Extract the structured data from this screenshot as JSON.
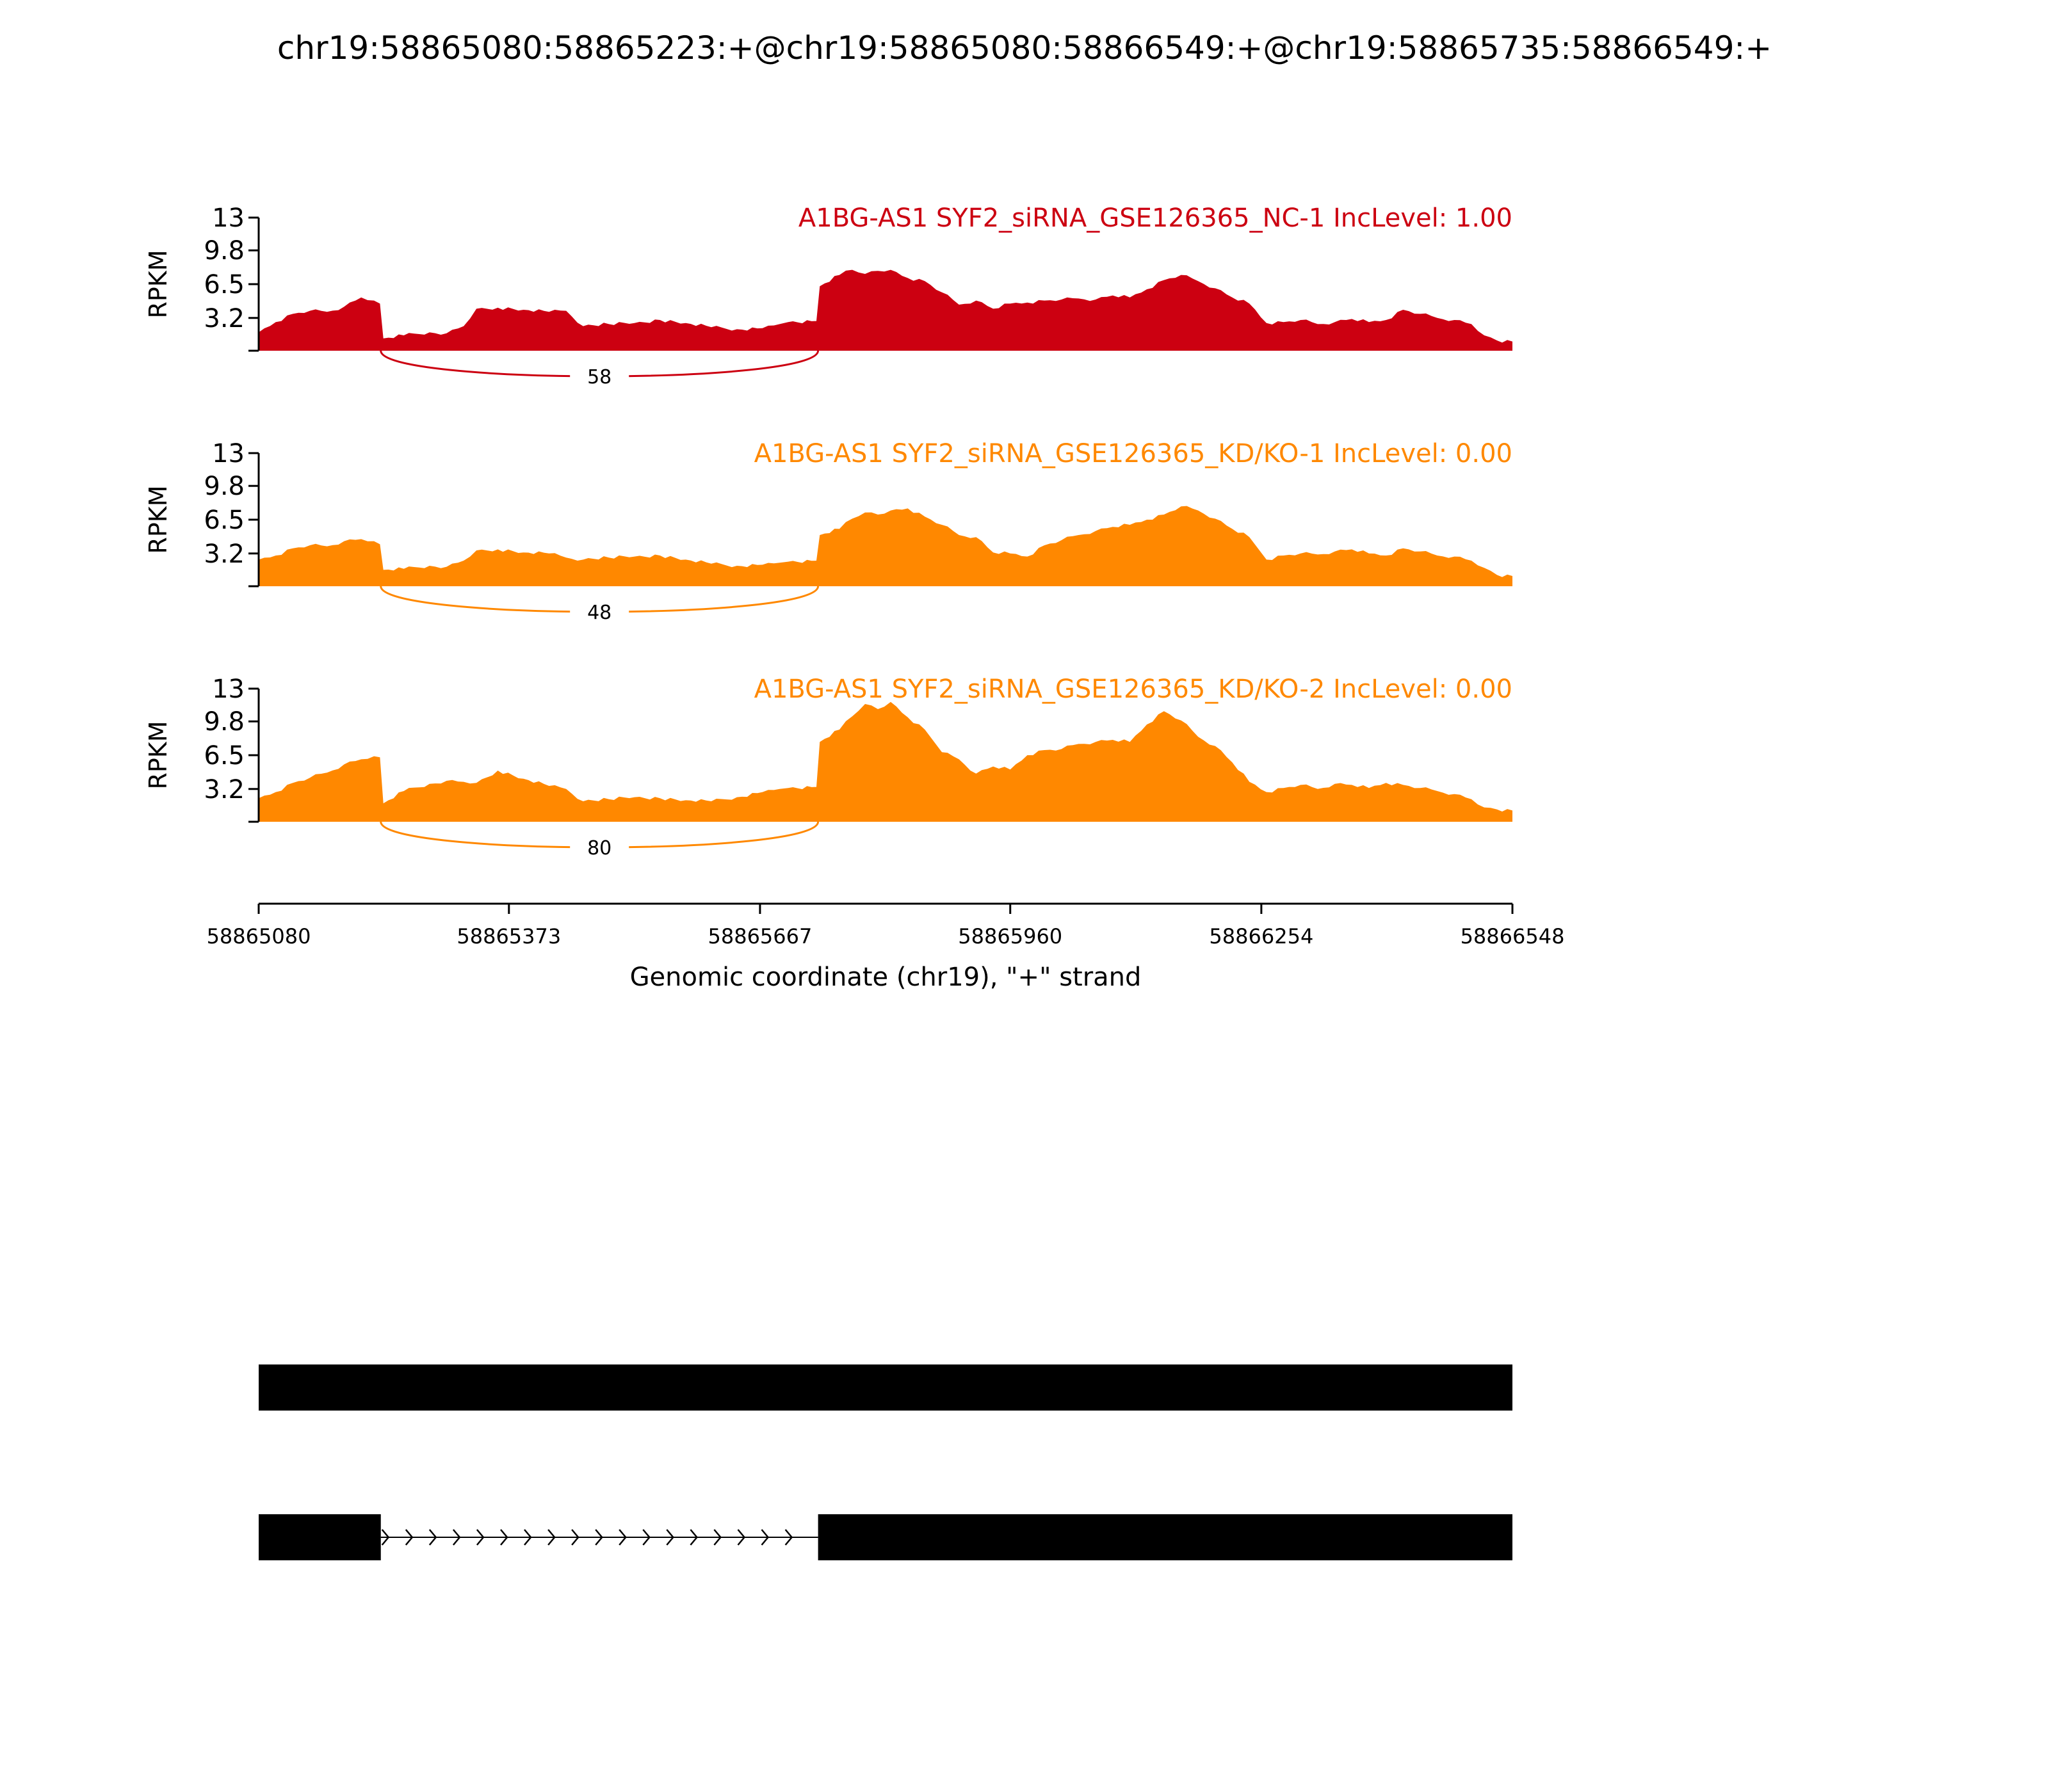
{
  "title": "chr19:58865080:58865223:+@chr19:58865080:58866549:+@chr19:58865735:58866549:+",
  "colors": {
    "nc": "#cc0011",
    "kd": "#ff8800",
    "axis": "#000000",
    "exon": "#000000"
  },
  "chart_data": {
    "type": "area",
    "xlabel": "Genomic coordinate (chr19), \"+\" strand",
    "ylabel": "RPKM",
    "xlim": [
      58865080,
      58866548
    ],
    "xticks": [
      58865080,
      58865373,
      58865667,
      58865960,
      58866254,
      58866548
    ],
    "xtick_labels": [
      "58865080",
      "58865373",
      "58865667",
      "58865960",
      "58866254",
      "58866548"
    ],
    "ylim": [
      0,
      13
    ],
    "yticks": [
      3.2,
      6.5,
      9.8,
      13
    ],
    "ytick_labels": [
      "3.2",
      "6.5",
      "9.8",
      "13"
    ],
    "grid": false,
    "series": [
      {
        "name": "A1BG-AS1 SYF2_siRNA_GSE126365_NC-1 IncLevel: 1.00",
        "color_key": "nc",
        "junction": {
          "start": 58865223,
          "end": 58865735,
          "count": "58"
        },
        "x": [
          58865080,
          58865100,
          58865120,
          58865140,
          58865160,
          58865180,
          58865200,
          58865215,
          58865222,
          58865226,
          58865250,
          58865280,
          58865300,
          58865320,
          58865335,
          58865360,
          58865390,
          58865420,
          58865440,
          58865460,
          58865490,
          58865520,
          58865550,
          58865580,
          58865610,
          58865640,
          58865670,
          58865690,
          58865700,
          58865733,
          58865737,
          58865760,
          58865775,
          58865790,
          58865805,
          58865820,
          58865840,
          58865860,
          58865880,
          58865900,
          58865920,
          58865940,
          58865960,
          58865980,
          58866000,
          58866020,
          58866040,
          58866060,
          58866080,
          58866100,
          58866120,
          58866140,
          58866160,
          58866180,
          58866200,
          58866220,
          58866240,
          58866260,
          58866280,
          58866300,
          58866320,
          58866340,
          58866360,
          58866380,
          58866400,
          58866420,
          58866440,
          58866460,
          58866480,
          58866500,
          58866515,
          58866530,
          58866548
        ],
        "y": [
          1.8,
          2.8,
          3.6,
          3.9,
          3.8,
          4.3,
          5.2,
          4.9,
          4.6,
          1.2,
          1.5,
          1.8,
          1.7,
          2.4,
          4.1,
          4.2,
          4.0,
          3.8,
          3.9,
          2.4,
          2.6,
          2.7,
          3.0,
          2.7,
          2.3,
          2.1,
          2.2,
          2.6,
          2.8,
          2.9,
          6.3,
          7.4,
          7.9,
          7.5,
          7.8,
          7.9,
          7.1,
          6.8,
          5.7,
          4.5,
          4.9,
          4.1,
          4.6,
          4.7,
          4.9,
          5.0,
          5.1,
          5.0,
          5.4,
          5.2,
          6.0,
          6.9,
          7.4,
          6.8,
          6.1,
          5.2,
          4.6,
          2.7,
          2.8,
          3.0,
          2.6,
          2.8,
          3.1,
          2.8,
          3.0,
          4.0,
          3.6,
          3.2,
          3.0,
          2.6,
          1.5,
          1.0,
          0.9
        ]
      },
      {
        "name": "A1BG-AS1 SYF2_siRNA_GSE126365_KD/KO-1 IncLevel: 0.00",
        "color_key": "kd",
        "junction": {
          "start": 58865223,
          "end": 58865735,
          "count": "48"
        },
        "x": [
          58865080,
          58865100,
          58865120,
          58865140,
          58865160,
          58865180,
          58865200,
          58865215,
          58865222,
          58865226,
          58865250,
          58865280,
          58865300,
          58865320,
          58865335,
          58865360,
          58865390,
          58865420,
          58865440,
          58865460,
          58865490,
          58865520,
          58865550,
          58865580,
          58865610,
          58865640,
          58865670,
          58865690,
          58865700,
          58865733,
          58865737,
          58865760,
          58865775,
          58865790,
          58865805,
          58865820,
          58865840,
          58865860,
          58865880,
          58865900,
          58865920,
          58865940,
          58865960,
          58865980,
          58866000,
          58866020,
          58866040,
          58866060,
          58866080,
          58866100,
          58866120,
          58866140,
          58866160,
          58866180,
          58866200,
          58866220,
          58866240,
          58866260,
          58866280,
          58866300,
          58866320,
          58866340,
          58866360,
          58866380,
          58866400,
          58866420,
          58866440,
          58866460,
          58866480,
          58866500,
          58866515,
          58866530,
          58866548
        ],
        "y": [
          2.6,
          3.0,
          3.7,
          4.0,
          3.9,
          4.4,
          4.6,
          4.4,
          4.1,
          1.6,
          1.7,
          2.0,
          1.9,
          2.5,
          3.5,
          3.6,
          3.3,
          3.2,
          2.8,
          2.6,
          2.8,
          2.9,
          3.0,
          2.6,
          2.2,
          2.0,
          2.1,
          2.3,
          2.4,
          2.5,
          5.0,
          5.6,
          6.6,
          7.2,
          7.0,
          7.4,
          7.6,
          6.8,
          6.0,
          5.0,
          4.8,
          3.3,
          3.2,
          2.9,
          4.0,
          4.5,
          5.0,
          5.4,
          5.8,
          6.0,
          6.5,
          7.0,
          7.8,
          7.4,
          6.6,
          5.6,
          4.8,
          2.6,
          3.0,
          3.2,
          3.1,
          3.4,
          3.6,
          3.2,
          3.0,
          3.7,
          3.4,
          3.0,
          2.9,
          2.5,
          1.8,
          1.1,
          1.0
        ]
      },
      {
        "name": "A1BG-AS1 SYF2_siRNA_GSE126365_KD/KO-2 IncLevel: 0.00",
        "color_key": "kd",
        "junction": {
          "start": 58865223,
          "end": 58865735,
          "count": "80"
        },
        "x": [
          58865080,
          58865100,
          58865120,
          58865140,
          58865160,
          58865180,
          58865200,
          58865215,
          58865222,
          58865226,
          58865250,
          58865280,
          58865300,
          58865320,
          58865335,
          58865360,
          58865390,
          58865420,
          58865440,
          58865460,
          58865490,
          58865520,
          58865550,
          58865580,
          58865610,
          58865640,
          58865670,
          58865690,
          58865700,
          58865733,
          58865737,
          58865760,
          58865775,
          58865790,
          58865805,
          58865820,
          58865840,
          58865860,
          58865880,
          58865900,
          58865920,
          58865940,
          58865960,
          58865980,
          58866000,
          58866020,
          58866040,
          58866060,
          58866080,
          58866100,
          58866120,
          58866140,
          58866160,
          58866180,
          58866200,
          58866220,
          58866240,
          58866260,
          58866280,
          58866300,
          58866320,
          58866340,
          58866360,
          58866380,
          58866400,
          58866420,
          58866440,
          58866460,
          58866480,
          58866500,
          58866515,
          58866530,
          58866548
        ],
        "y": [
          2.3,
          2.9,
          3.8,
          4.3,
          4.8,
          5.6,
          6.1,
          6.4,
          6.3,
          1.8,
          3.0,
          3.7,
          4.0,
          3.9,
          3.8,
          5.0,
          4.2,
          3.5,
          3.2,
          2.0,
          2.2,
          2.4,
          2.3,
          2.1,
          2.0,
          2.4,
          2.9,
          3.2,
          3.3,
          3.4,
          7.8,
          9.0,
          10.3,
          11.5,
          11.0,
          11.7,
          10.2,
          9.0,
          6.8,
          6.1,
          4.7,
          5.4,
          5.1,
          6.5,
          7.0,
          7.1,
          7.6,
          7.8,
          8.0,
          7.8,
          9.5,
          10.8,
          9.9,
          8.3,
          7.4,
          5.8,
          3.9,
          2.9,
          3.3,
          3.6,
          3.2,
          3.7,
          3.6,
          3.3,
          3.8,
          3.6,
          3.3,
          3.0,
          2.7,
          2.2,
          1.4,
          1.2,
          1.1
        ]
      }
    ],
    "gene_models": [
      {
        "exons": [
          [
            58865080,
            58866548
          ]
        ]
      },
      {
        "exons": [
          [
            58865080,
            58865223
          ],
          [
            58865735,
            58866548
          ]
        ],
        "intron": [
          58865223,
          58865735
        ],
        "strand": "+"
      }
    ]
  }
}
